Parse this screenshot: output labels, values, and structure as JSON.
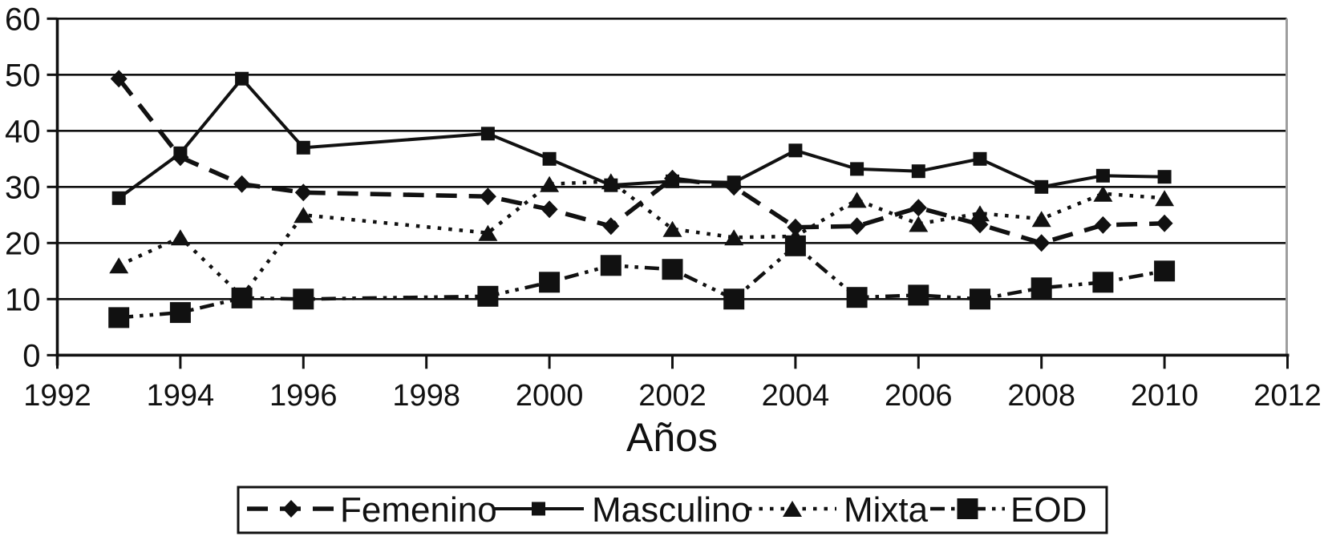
{
  "chart_data": {
    "type": "line",
    "title": "",
    "xlabel": "Años",
    "ylabel": "",
    "x_range": [
      1992,
      2012
    ],
    "y_range": [
      0,
      60
    ],
    "x_ticks": [
      1992,
      1994,
      1996,
      1998,
      2000,
      2002,
      2004,
      2006,
      2008,
      2010,
      2012
    ],
    "y_ticks": [
      0,
      10,
      20,
      30,
      40,
      50,
      60
    ],
    "grid": "horizontal",
    "legend_position": "bottom",
    "years": [
      1993,
      1994,
      1995,
      1996,
      1999,
      2000,
      2001,
      2002,
      2003,
      2004,
      2005,
      2006,
      2007,
      2008,
      2009,
      2010
    ],
    "series": [
      {
        "name": "Femenino",
        "marker": "diamond",
        "line": "dashed",
        "values": [
          49.3,
          35.3,
          30.5,
          29,
          28.3,
          26,
          23,
          31.5,
          30,
          22.8,
          23,
          26.3,
          23.3,
          20,
          23.2,
          23.5
        ]
      },
      {
        "name": "Masculino",
        "marker": "square",
        "line": "solid",
        "values": [
          28,
          36,
          49.3,
          37,
          39.5,
          35,
          30.3,
          31,
          30.8,
          36.5,
          33.2,
          32.8,
          35,
          30,
          32,
          31.8
        ]
      },
      {
        "name": "Mixta",
        "marker": "triangle",
        "line": "dotted",
        "values": [
          16,
          21,
          10.5,
          25,
          21.8,
          30.5,
          31,
          22.5,
          21,
          21.2,
          27.7,
          23.4,
          25.3,
          24.3,
          28.8,
          28
        ]
      },
      {
        "name": "EOD",
        "marker": "big-square",
        "line": "dashdot",
        "values": [
          6.7,
          7.6,
          10.2,
          10,
          10.5,
          13,
          16,
          15.3,
          10,
          19.5,
          10.3,
          10.7,
          10,
          12,
          13,
          15
        ]
      }
    ],
    "legend": [
      "Femenino",
      "Masculino",
      "Mixta",
      "EOD"
    ],
    "colors": {
      "ink": "#111111",
      "background": "#ffffff",
      "right_border": "#9e9e9e"
    }
  }
}
